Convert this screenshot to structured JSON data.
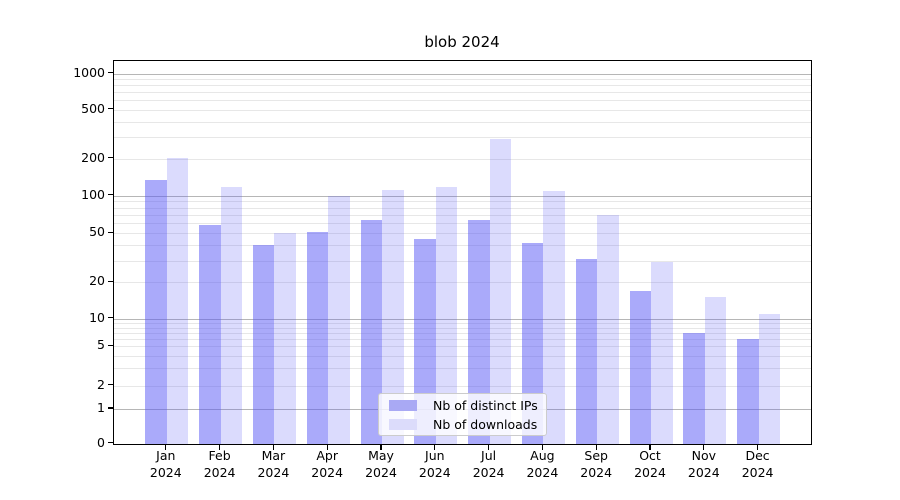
{
  "title": "blob 2024",
  "chart_data": {
    "type": "bar",
    "title": "blob 2024",
    "categories": [
      "Jan",
      "Feb",
      "Mar",
      "Apr",
      "May",
      "Jun",
      "Jul",
      "Aug",
      "Sep",
      "Oct",
      "Nov",
      "Dec"
    ],
    "category_year": "2024",
    "series": [
      {
        "name": "Nb of distinct IPs",
        "values": [
          135,
          58,
          40,
          51,
          64,
          45,
          64,
          42,
          31,
          17,
          7,
          6
        ],
        "color": "rgba(85,85,245,0.50)",
        "swatch": "#a9a9f4"
      },
      {
        "name": "Nb of downloads",
        "values": [
          205,
          118,
          50,
          100,
          112,
          118,
          290,
          110,
          70,
          29,
          15,
          11
        ],
        "color": "rgba(85,85,245,0.21)",
        "swatch": "#dcdcfb"
      }
    ],
    "xlabel": "",
    "ylabel": "",
    "y_scale": "symlog",
    "y_ticks": [
      0,
      1,
      2,
      5,
      10,
      20,
      50,
      100,
      200,
      500,
      1000
    ],
    "ylim": [
      0,
      1300
    ],
    "grid": "horizontal major and log-minor gridlines",
    "legend_position": "lower center",
    "colors": {
      "bar_distinct_ips": "#a9a9f4",
      "bar_downloads": "#dcdcfb",
      "major_grid": "#b6b6b6",
      "minor_grid": "#e7e7e7",
      "spine": "#000000"
    }
  }
}
